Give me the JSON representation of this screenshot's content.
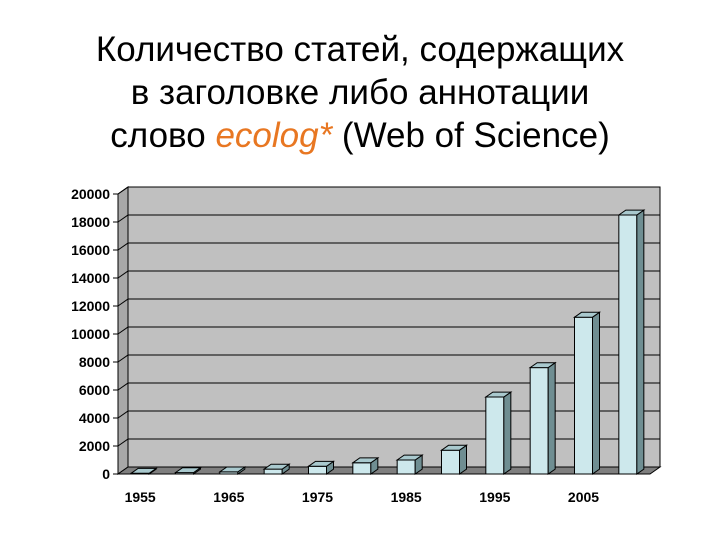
{
  "title": {
    "line1": "Количество статей, содержащих",
    "line2": "в заголовке либо аннотации",
    "line3_pre": "слово ",
    "line3_highlight": "ecolog*",
    "line3_post": " (Web of Science)"
  },
  "colors": {
    "highlight": "#e87722",
    "bar_front": "#cde8ec",
    "bar_side": "#6f8e92",
    "bar_top": "#a9c9ce",
    "plot_back": "#c0c0c0",
    "plot_floor": "#7f7f7f"
  },
  "chart_data": {
    "type": "bar",
    "three_d": true,
    "x": [
      1955,
      1960,
      1965,
      1970,
      1975,
      1980,
      1985,
      1990,
      1995,
      2000,
      2005,
      2010
    ],
    "values": [
      50,
      100,
      150,
      350,
      550,
      800,
      1000,
      1700,
      5500,
      7600,
      11200,
      18500
    ],
    "x_tick_labels": [
      "1955",
      "1965",
      "1975",
      "1985",
      "1995",
      "2005"
    ],
    "y_tick_labels": [
      "0",
      "2000",
      "4000",
      "6000",
      "8000",
      "10000",
      "12000",
      "14000",
      "16000",
      "18000",
      "20000"
    ],
    "ylim": [
      0,
      20000
    ],
    "grid": true,
    "legend": "none"
  }
}
